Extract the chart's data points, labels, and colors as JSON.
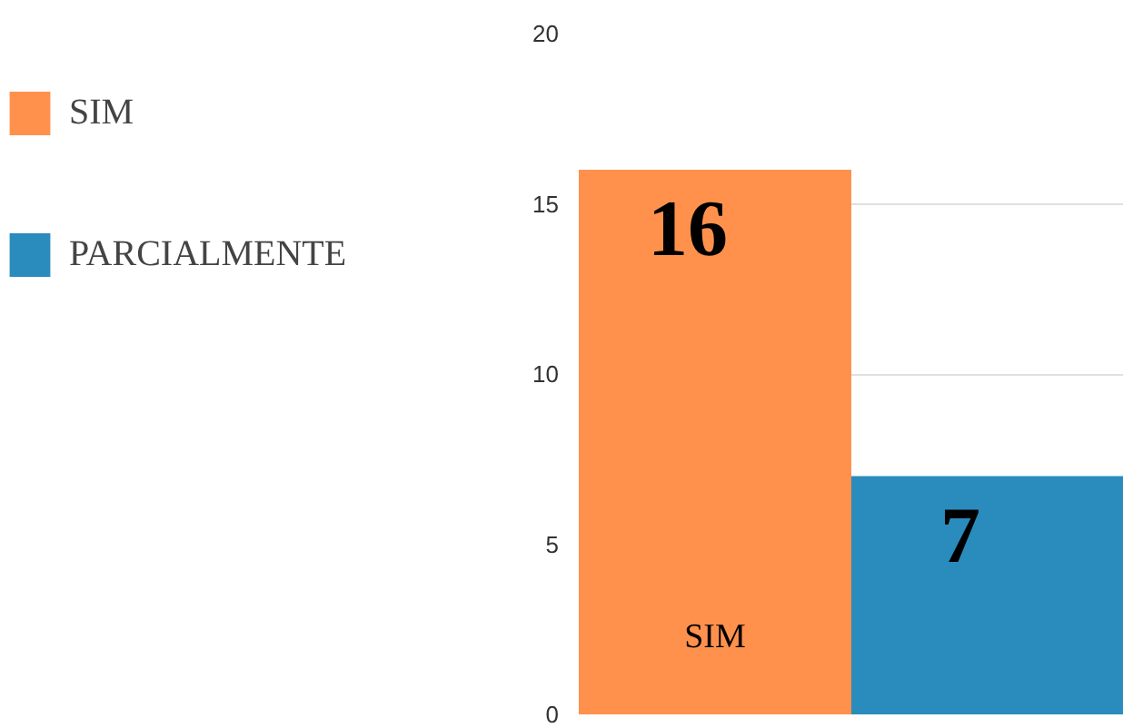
{
  "chart_data": {
    "type": "bar",
    "categories": [
      null,
      null
    ],
    "series": [
      {
        "name": "SIM",
        "color": "#ff914d",
        "values": [
          16,
          null
        ]
      },
      {
        "name": "PARCIALMENTE",
        "color": "#2a8bbd",
        "values": [
          null,
          7
        ]
      }
    ],
    "ylim": [
      0,
      20
    ],
    "yticks": [
      0,
      5,
      10,
      15,
      20
    ],
    "grid": "y",
    "legend": "left",
    "data_labels": true,
    "tick_labels": "y",
    "annotations": [
      "SIM"
    ]
  }
}
